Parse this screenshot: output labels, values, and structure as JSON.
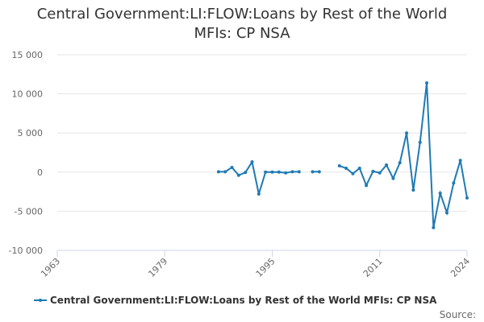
{
  "chart_data": {
    "type": "line",
    "title": "Central Government:LI:FLOW:Loans by Rest of the World MFIs: CP NSA",
    "x": [
      1987,
      1988,
      1989,
      1990,
      1991,
      1992,
      1993,
      1994,
      1995,
      1996,
      1997,
      1998,
      1999,
      2000,
      2001,
      2002,
      2003,
      2004,
      2005,
      2006,
      2007,
      2008,
      2009,
      2010,
      2011,
      2012,
      2013,
      2014,
      2015,
      2016,
      2017,
      2018,
      2019,
      2020,
      2021,
      2022,
      2023,
      2024
    ],
    "series": [
      {
        "name": "Central Government:LI:FLOW:Loans by Rest of the World MFIs: CP NSA",
        "color": "#1f7ab5",
        "values": [
          50,
          50,
          600,
          -400,
          -50,
          1300,
          -2800,
          0,
          0,
          0,
          -100,
          50,
          50,
          null,
          50,
          50,
          null,
          null,
          800,
          500,
          -200,
          500,
          -1700,
          100,
          -100,
          900,
          -800,
          1200,
          5000,
          -2300,
          3800,
          11400,
          -7100,
          -2700,
          -5200,
          -1400,
          1500,
          -3300
        ]
      }
    ],
    "xlim": [
      1963,
      2024
    ],
    "xticks": [
      1963,
      1979,
      1995,
      2011,
      2024
    ],
    "ylim": [
      -10000,
      15000
    ],
    "yticks": [
      {
        "value": -10000,
        "label": "-10 000"
      },
      {
        "value": -5000,
        "label": "-5 000"
      },
      0,
      {
        "value": 5000,
        "label": "5 000"
      },
      {
        "value": 10000,
        "label": "10 000"
      },
      {
        "value": 15000,
        "label": "15 000"
      }
    ],
    "grid": true,
    "legend": "bottom",
    "source": "Source:"
  }
}
